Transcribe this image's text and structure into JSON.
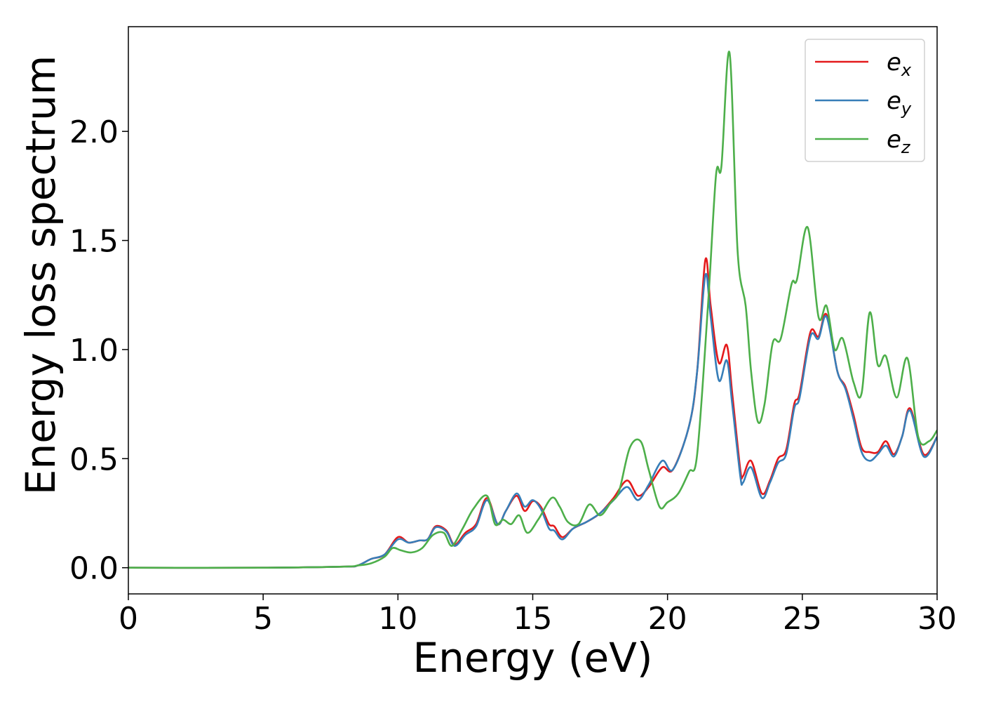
{
  "chart_data": {
    "type": "line",
    "xlabel": "Energy (eV)",
    "ylabel": "Energy loss spectrum",
    "xlim": [
      0,
      30
    ],
    "ylim": [
      -0.12,
      2.48
    ],
    "xticks": [
      0,
      5,
      10,
      15,
      20,
      25,
      30
    ],
    "xtick_labels": [
      "0",
      "5",
      "10",
      "15",
      "20",
      "25",
      "30"
    ],
    "yticks": [
      0.0,
      0.5,
      1.0,
      1.5,
      2.0
    ],
    "ytick_labels": [
      "0.0",
      "0.5",
      "1.0",
      "1.5",
      "2.0"
    ],
    "grid": false,
    "legend_position": "top-right",
    "series": [
      {
        "name": "e",
        "subscript": "x",
        "color": "#e41a1c",
        "points": [
          [
            0,
            0
          ],
          [
            5,
            0
          ],
          [
            8,
            0.005
          ],
          [
            8.5,
            0.01
          ],
          [
            9,
            0.04
          ],
          [
            9.5,
            0.06
          ],
          [
            10,
            0.14
          ],
          [
            10.4,
            0.115
          ],
          [
            10.8,
            0.125
          ],
          [
            11.1,
            0.13
          ],
          [
            11.4,
            0.19
          ],
          [
            11.8,
            0.17
          ],
          [
            12.1,
            0.105
          ],
          [
            12.5,
            0.16
          ],
          [
            12.9,
            0.2
          ],
          [
            13.3,
            0.32
          ],
          [
            13.7,
            0.2
          ],
          [
            14.0,
            0.26
          ],
          [
            14.4,
            0.33
          ],
          [
            14.7,
            0.26
          ],
          [
            15.0,
            0.305
          ],
          [
            15.3,
            0.28
          ],
          [
            15.6,
            0.2
          ],
          [
            15.8,
            0.19
          ],
          [
            16.1,
            0.14
          ],
          [
            16.5,
            0.18
          ],
          [
            17.0,
            0.21
          ],
          [
            17.5,
            0.25
          ],
          [
            18.0,
            0.32
          ],
          [
            18.5,
            0.4
          ],
          [
            18.9,
            0.33
          ],
          [
            19.3,
            0.37
          ],
          [
            19.8,
            0.46
          ],
          [
            20.2,
            0.45
          ],
          [
            20.8,
            0.65
          ],
          [
            21.1,
            0.9
          ],
          [
            21.4,
            1.41
          ],
          [
            21.6,
            1.2
          ],
          [
            21.9,
            0.94
          ],
          [
            22.2,
            1.02
          ],
          [
            22.4,
            0.8
          ],
          [
            22.7,
            0.45
          ],
          [
            22.8,
            0.42
          ],
          [
            23.1,
            0.49
          ],
          [
            23.5,
            0.34
          ],
          [
            23.8,
            0.4
          ],
          [
            24.1,
            0.5
          ],
          [
            24.4,
            0.54
          ],
          [
            24.7,
            0.75
          ],
          [
            24.9,
            0.8
          ],
          [
            25.3,
            1.08
          ],
          [
            25.6,
            1.06
          ],
          [
            25.9,
            1.16
          ],
          [
            26.3,
            0.9
          ],
          [
            26.6,
            0.83
          ],
          [
            26.9,
            0.7
          ],
          [
            27.2,
            0.55
          ],
          [
            27.5,
            0.53
          ],
          [
            27.8,
            0.53
          ],
          [
            28.1,
            0.58
          ],
          [
            28.4,
            0.52
          ],
          [
            28.7,
            0.6
          ],
          [
            29.0,
            0.73
          ],
          [
            29.5,
            0.52
          ],
          [
            30,
            0.6
          ]
        ]
      },
      {
        "name": "e",
        "subscript": "y",
        "color": "#377eb8",
        "points": [
          [
            0,
            0
          ],
          [
            5,
            0
          ],
          [
            8,
            0.005
          ],
          [
            8.5,
            0.01
          ],
          [
            9,
            0.04
          ],
          [
            9.5,
            0.06
          ],
          [
            10,
            0.13
          ],
          [
            10.4,
            0.115
          ],
          [
            10.8,
            0.125
          ],
          [
            11.1,
            0.13
          ],
          [
            11.4,
            0.185
          ],
          [
            11.8,
            0.165
          ],
          [
            12.1,
            0.1
          ],
          [
            12.5,
            0.15
          ],
          [
            12.9,
            0.19
          ],
          [
            13.3,
            0.31
          ],
          [
            13.7,
            0.2
          ],
          [
            14.0,
            0.26
          ],
          [
            14.4,
            0.34
          ],
          [
            14.7,
            0.28
          ],
          [
            15.0,
            0.31
          ],
          [
            15.3,
            0.27
          ],
          [
            15.6,
            0.18
          ],
          [
            15.8,
            0.17
          ],
          [
            16.1,
            0.13
          ],
          [
            16.5,
            0.18
          ],
          [
            17.0,
            0.21
          ],
          [
            17.5,
            0.25
          ],
          [
            18.0,
            0.31
          ],
          [
            18.5,
            0.37
          ],
          [
            18.9,
            0.31
          ],
          [
            19.3,
            0.38
          ],
          [
            19.8,
            0.49
          ],
          [
            20.2,
            0.45
          ],
          [
            20.8,
            0.65
          ],
          [
            21.1,
            0.9
          ],
          [
            21.4,
            1.34
          ],
          [
            21.6,
            1.15
          ],
          [
            21.9,
            0.86
          ],
          [
            22.2,
            0.95
          ],
          [
            22.4,
            0.75
          ],
          [
            22.7,
            0.42
          ],
          [
            22.8,
            0.39
          ],
          [
            23.1,
            0.46
          ],
          [
            23.5,
            0.32
          ],
          [
            23.8,
            0.39
          ],
          [
            24.1,
            0.48
          ],
          [
            24.4,
            0.52
          ],
          [
            24.7,
            0.73
          ],
          [
            24.9,
            0.78
          ],
          [
            25.3,
            1.06
          ],
          [
            25.6,
            1.05
          ],
          [
            25.9,
            1.15
          ],
          [
            26.3,
            0.9
          ],
          [
            26.6,
            0.82
          ],
          [
            26.9,
            0.68
          ],
          [
            27.2,
            0.53
          ],
          [
            27.5,
            0.49
          ],
          [
            27.8,
            0.52
          ],
          [
            28.1,
            0.56
          ],
          [
            28.4,
            0.51
          ],
          [
            28.7,
            0.6
          ],
          [
            29.0,
            0.72
          ],
          [
            29.5,
            0.51
          ],
          [
            30,
            0.6
          ]
        ]
      },
      {
        "name": "e",
        "subscript": "z",
        "color": "#4daf4a",
        "points": [
          [
            0,
            0
          ],
          [
            5,
            0
          ],
          [
            8,
            0.005
          ],
          [
            8.5,
            0.01
          ],
          [
            9,
            0.02
          ],
          [
            9.5,
            0.05
          ],
          [
            9.8,
            0.09
          ],
          [
            10.1,
            0.08
          ],
          [
            10.5,
            0.07
          ],
          [
            10.9,
            0.09
          ],
          [
            11.3,
            0.15
          ],
          [
            11.7,
            0.16
          ],
          [
            12.0,
            0.1
          ],
          [
            12.4,
            0.18
          ],
          [
            12.8,
            0.27
          ],
          [
            13.3,
            0.33
          ],
          [
            13.6,
            0.2
          ],
          [
            13.9,
            0.22
          ],
          [
            14.2,
            0.2
          ],
          [
            14.5,
            0.24
          ],
          [
            14.8,
            0.16
          ],
          [
            15.2,
            0.22
          ],
          [
            15.7,
            0.32
          ],
          [
            16.0,
            0.28
          ],
          [
            16.3,
            0.21
          ],
          [
            16.7,
            0.2
          ],
          [
            17.1,
            0.29
          ],
          [
            17.5,
            0.24
          ],
          [
            17.9,
            0.3
          ],
          [
            18.2,
            0.35
          ],
          [
            18.6,
            0.55
          ],
          [
            19.0,
            0.58
          ],
          [
            19.3,
            0.45
          ],
          [
            19.7,
            0.28
          ],
          [
            20.0,
            0.3
          ],
          [
            20.4,
            0.34
          ],
          [
            20.8,
            0.44
          ],
          [
            21.1,
            0.52
          ],
          [
            21.5,
            1.2
          ],
          [
            21.8,
            1.8
          ],
          [
            22.0,
            1.84
          ],
          [
            22.3,
            2.36
          ],
          [
            22.6,
            1.45
          ],
          [
            22.9,
            1.2
          ],
          [
            23.1,
            0.9
          ],
          [
            23.35,
            0.67
          ],
          [
            23.6,
            0.75
          ],
          [
            23.9,
            1.03
          ],
          [
            24.2,
            1.05
          ],
          [
            24.6,
            1.3
          ],
          [
            24.8,
            1.32
          ],
          [
            25.2,
            1.56
          ],
          [
            25.6,
            1.15
          ],
          [
            25.9,
            1.2
          ],
          [
            26.2,
            1.0
          ],
          [
            26.5,
            1.05
          ],
          [
            26.9,
            0.85
          ],
          [
            27.2,
            0.8
          ],
          [
            27.5,
            1.17
          ],
          [
            27.8,
            0.93
          ],
          [
            28.1,
            0.97
          ],
          [
            28.5,
            0.78
          ],
          [
            28.9,
            0.96
          ],
          [
            29.3,
            0.6
          ],
          [
            29.7,
            0.58
          ],
          [
            30,
            0.63
          ]
        ]
      }
    ]
  }
}
